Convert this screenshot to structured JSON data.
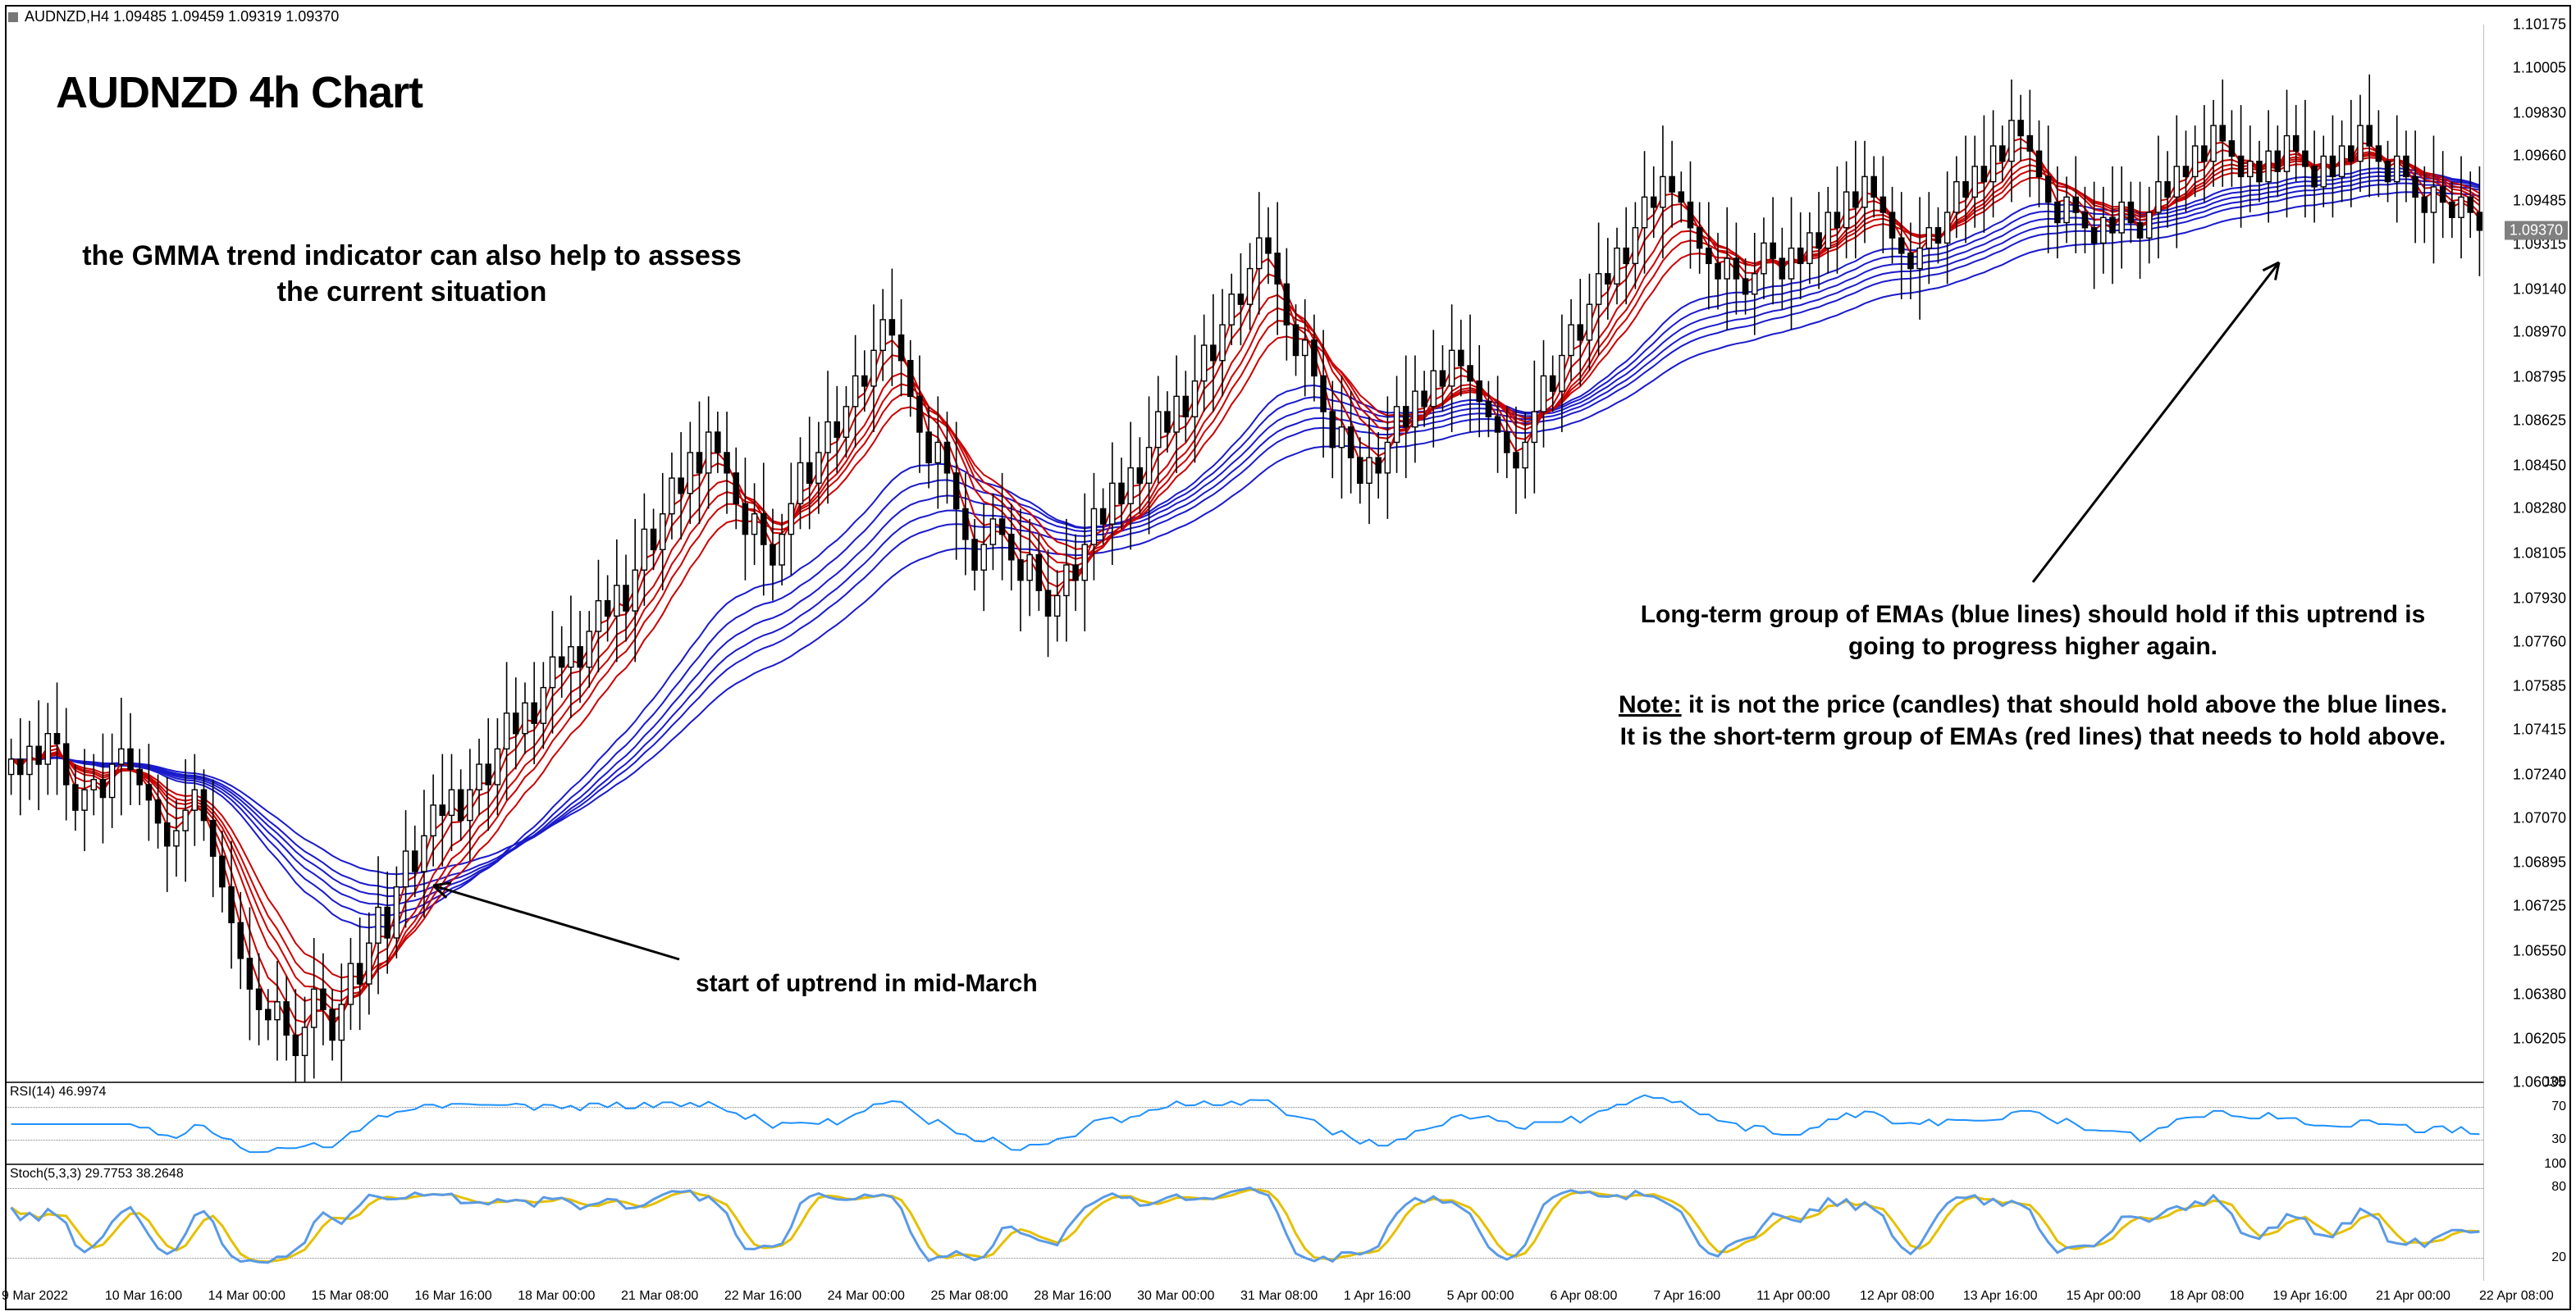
{
  "chart": {
    "type": "candlestick-with-indicators",
    "symbol_line": "AUDNZD,H4  1.09485 1.09459 1.09319 1.09370",
    "title": "AUDNZD 4h Chart",
    "title_fontsize": 54,
    "background_color": "#ffffff",
    "border_color": "#000000",
    "candle_up_fill": "#ffffff",
    "candle_down_fill": "#000000",
    "candle_outline": "#000000",
    "wick_color": "#000000",
    "short_ema_color": "#cc0000",
    "long_ema_color": "#1a1acc",
    "short_ema_count": 6,
    "long_ema_count": 6,
    "ema_line_width": 2,
    "price_axis": {
      "min": 1.06035,
      "max": 1.10175,
      "step": 0.0017,
      "ticks": [
        1.10175,
        1.10005,
        1.0983,
        1.0966,
        1.09485,
        1.09315,
        1.0914,
        1.0897,
        1.08795,
        1.08625,
        1.0845,
        1.0828,
        1.08105,
        1.0793,
        1.0776,
        1.07585,
        1.07415,
        1.0724,
        1.0707,
        1.06895,
        1.06725,
        1.0655,
        1.0638,
        1.06205,
        1.06035
      ],
      "current_price": 1.0937
    },
    "time_axis": {
      "labels": [
        "9 Mar 2022",
        "10 Mar 16:00",
        "14 Mar 00:00",
        "15 Mar 08:00",
        "16 Mar 16:00",
        "18 Mar 00:00",
        "21 Mar 08:00",
        "22 Mar 16:00",
        "24 Mar 00:00",
        "25 Mar 08:00",
        "28 Mar 16:00",
        "30 Mar 00:00",
        "31 Mar 08:00",
        "1 Apr 16:00",
        "5 Apr 00:00",
        "6 Apr 08:00",
        "7 Apr 16:00",
        "11 Apr 00:00",
        "12 Apr 08:00",
        "13 Apr 16:00",
        "15 Apr 00:00",
        "18 Apr 08:00",
        "19 Apr 16:00",
        "21 Apr 00:00",
        "22 Apr 08:00"
      ]
    },
    "n_bars": 270,
    "candles_base": [
      1.073,
      1.0724,
      1.0735,
      1.0728,
      1.074,
      1.0736,
      1.072,
      1.071,
      1.0718,
      1.0722,
      1.0715,
      1.0728,
      1.0734,
      1.0726,
      1.072,
      1.0714,
      1.0705,
      1.0696,
      1.0702,
      1.071,
      1.0718,
      1.0706,
      1.0692,
      1.068,
      1.0666,
      1.0652,
      1.064,
      1.0632,
      1.0628,
      1.0635,
      1.0622,
      1.0614,
      1.0625,
      1.064,
      1.0632,
      1.062,
      1.0634,
      1.065,
      1.0642,
      1.0658,
      1.0672,
      1.066,
      1.068,
      1.0694,
      1.0686,
      1.07,
      1.0712,
      1.0708,
      1.0718,
      1.0706,
      1.0718,
      1.0728,
      1.072,
      1.0734,
      1.0748,
      1.074,
      1.0752,
      1.0744,
      1.0758,
      1.077,
      1.0766,
      1.0774,
      1.0766,
      1.078,
      1.0792,
      1.0786,
      1.0798,
      1.0788,
      1.0804,
      1.082,
      1.0812,
      1.0826,
      1.084,
      1.0834,
      1.085,
      1.0842,
      1.0858,
      1.085,
      1.0842,
      1.083,
      1.0818,
      1.0826,
      1.0814,
      1.0806,
      1.0818,
      1.083,
      1.0846,
      1.0838,
      1.085,
      1.0862,
      1.0856,
      1.0868,
      1.088,
      1.0876,
      1.089,
      1.0902,
      1.0896,
      1.0886,
      1.0872,
      1.0858,
      1.0846,
      1.0854,
      1.0842,
      1.0828,
      1.0816,
      1.0804,
      1.0814,
      1.0824,
      1.0818,
      1.0808,
      1.08,
      1.081,
      1.0796,
      1.0786,
      1.0794,
      1.0806,
      1.08,
      1.0814,
      1.0828,
      1.0822,
      1.0838,
      1.083,
      1.0844,
      1.0838,
      1.0852,
      1.0866,
      1.0858,
      1.0872,
      1.0864,
      1.0878,
      1.0892,
      1.0886,
      1.09,
      1.0912,
      1.0908,
      1.0922,
      1.0934,
      1.0928,
      1.0916,
      1.09,
      1.0888,
      1.0894,
      1.088,
      1.0866,
      1.0852,
      1.086,
      1.0848,
      1.0838,
      1.0848,
      1.0842,
      1.0854,
      1.0868,
      1.086,
      1.0874,
      1.0868,
      1.0882,
      1.0876,
      1.089,
      1.0884,
      1.0878,
      1.087,
      1.0864,
      1.0858,
      1.085,
      1.0844,
      1.0854,
      1.0866,
      1.088,
      1.0874,
      1.0888,
      1.09,
      1.0894,
      1.0908,
      1.092,
      1.0916,
      1.093,
      1.0924,
      1.0938,
      1.095,
      1.0946,
      1.0958,
      1.0952,
      1.0948,
      1.0938,
      1.093,
      1.0924,
      1.0918,
      1.0926,
      1.0918,
      1.0912,
      1.092,
      1.0932,
      1.0926,
      1.0918,
      1.093,
      1.0924,
      1.0936,
      1.093,
      1.0944,
      1.0938,
      1.0952,
      1.0946,
      1.0958,
      1.095,
      1.0944,
      1.0934,
      1.0928,
      1.0922,
      1.093,
      1.0938,
      1.0932,
      1.0944,
      1.0956,
      1.095,
      1.0962,
      1.0956,
      1.097,
      1.0964,
      1.098,
      1.0974,
      1.0968,
      1.0958,
      1.0948,
      1.094,
      1.095,
      1.0944,
      1.0938,
      1.0932,
      1.0942,
      1.0936,
      1.0948,
      1.094,
      1.0934,
      1.0944,
      1.0956,
      1.095,
      1.0962,
      1.0958,
      1.097,
      1.0964,
      1.0978,
      1.0972,
      1.0966,
      1.0958,
      1.0964,
      1.0956,
      1.0968,
      1.096,
      1.0974,
      1.0968,
      1.0962,
      1.0954,
      1.0966,
      1.0958,
      1.097,
      1.0964,
      1.0978,
      1.097,
      1.0964,
      1.0956,
      1.0966,
      1.0958,
      1.095,
      1.0944,
      1.0954,
      1.0948,
      1.0942,
      1.095,
      1.0944,
      1.0937
    ],
    "rsi": {
      "label": "RSI(14) 46.9974",
      "color": "#1e90ff",
      "line_width": 2,
      "ylevels": [
        0,
        30,
        70,
        100
      ],
      "ref_color": "#808080"
    },
    "stoch": {
      "label": "Stoch(5,3,3) 29.7753 38.2648",
      "k_color": "#5a9ae6",
      "d_color": "#e6c000",
      "line_width": 3,
      "ylevels": [
        20,
        80,
        100
      ]
    },
    "annotations": {
      "subtitle": "the GMMA trend indicator can also help to assess the current situation",
      "subtitle_fontsize": 34,
      "start_uptrend": "start of uptrend in mid-March",
      "start_fontsize": 30,
      "longterm": "Long-term group of EMAs (blue lines) should hold if this uptrend is going to progress higher again.",
      "longterm_fontsize": 30,
      "note_label": "Note:",
      "note_body": "it is not the price (candles) that should hold above the blue lines. It is the short-term group of EMAs (red lines) that needs to hold above.",
      "arrow_color": "#000000",
      "arrow_width": 3
    }
  }
}
